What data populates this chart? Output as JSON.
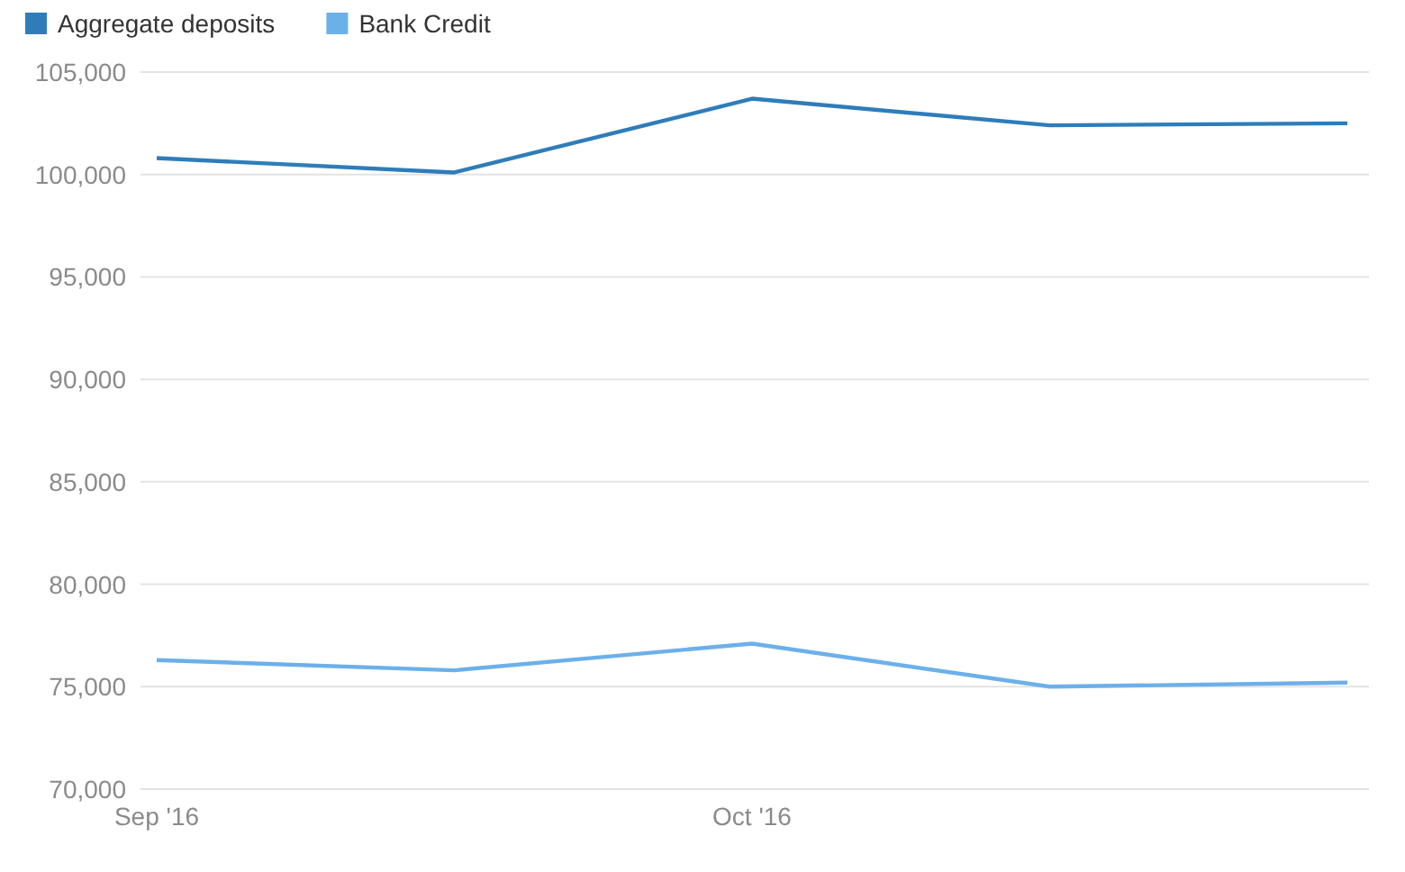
{
  "chart_data": {
    "type": "line",
    "categories": [
      "Sep '16",
      null,
      "Oct '16",
      null,
      null
    ],
    "series": [
      {
        "name": "Aggregate deposits",
        "color": "#2e7dba",
        "values": [
          100800,
          100100,
          103700,
          102400,
          102500
        ]
      },
      {
        "name": "Bank Credit",
        "color": "#6cb0ea",
        "values": [
          76300,
          75800,
          77100,
          75000,
          75200
        ]
      }
    ],
    "ylim": [
      70000,
      105000
    ],
    "yticks": [
      {
        "value": 70000,
        "label": "70,000"
      },
      {
        "value": 75000,
        "label": "75,000"
      },
      {
        "value": 80000,
        "label": "80,000"
      },
      {
        "value": 85000,
        "label": "85,000"
      },
      {
        "value": 90000,
        "label": "90,000"
      },
      {
        "value": 95000,
        "label": "95,000"
      },
      {
        "value": 100000,
        "label": "100,000"
      },
      {
        "value": 105000,
        "label": "105,000"
      }
    ],
    "grid": "y",
    "legend": "top left",
    "marker": "none",
    "line_style": "solid"
  }
}
